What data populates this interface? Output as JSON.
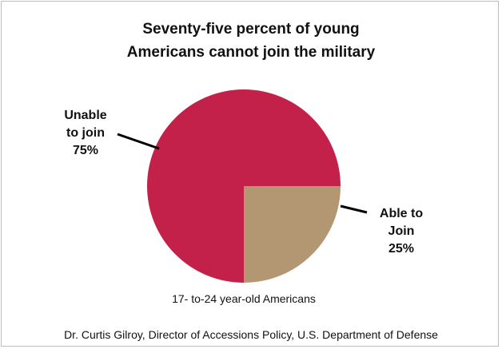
{
  "chart_data": {
    "type": "pie",
    "title_line1": "Seventy-five percent of young",
    "title_line2": "Americans cannot join the military",
    "slices": [
      {
        "label_line1": "Unable",
        "label_line2": "to join",
        "percent_label": "75%",
        "value": 75,
        "color": "#c4214a"
      },
      {
        "label_line1": "Able to",
        "label_line2": "Join",
        "percent_label": "25%",
        "value": 25,
        "color": "#b39773"
      }
    ],
    "caption": "17- to-24 year-old Americans",
    "source": "Dr. Curtis Gilroy, Director of Accessions Policy, U.S. Department of Defense"
  }
}
